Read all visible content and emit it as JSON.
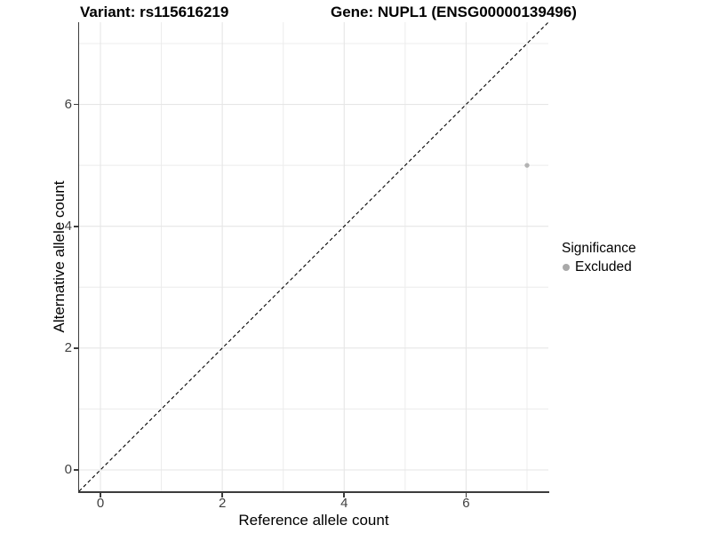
{
  "titles": {
    "variant": "Variant: rs115616219",
    "gene": "Gene: NUPL1 (ENSG00000139496)"
  },
  "chart_data": {
    "type": "scatter",
    "xlabel": "Reference allele count",
    "ylabel": "Alternative allele count",
    "xlim": [
      -0.35,
      7.35
    ],
    "ylim": [
      -0.35,
      7.35
    ],
    "xticks": [
      0,
      2,
      4,
      6
    ],
    "yticks": [
      0,
      2,
      4,
      6
    ],
    "gridlines": {
      "major": [
        0,
        2,
        4,
        6
      ],
      "minor": [
        1,
        3,
        5,
        7
      ]
    },
    "grid": true,
    "points": [
      {
        "x": 7,
        "y": 5,
        "series": "Excluded"
      }
    ],
    "reference_line": {
      "slope": 1,
      "intercept": 0,
      "style": "dashed",
      "color": "#000000"
    },
    "legend": {
      "title": "Significance",
      "position": "right",
      "items": [
        {
          "label": "Excluded",
          "color": "#a9a9a9"
        }
      ]
    },
    "colors": {
      "point": "#b3b3b3",
      "grid_major": "#e6e6e6",
      "grid_minor": "#ececec",
      "axis": "#3c3c3c",
      "tick_label": "#404040"
    }
  }
}
